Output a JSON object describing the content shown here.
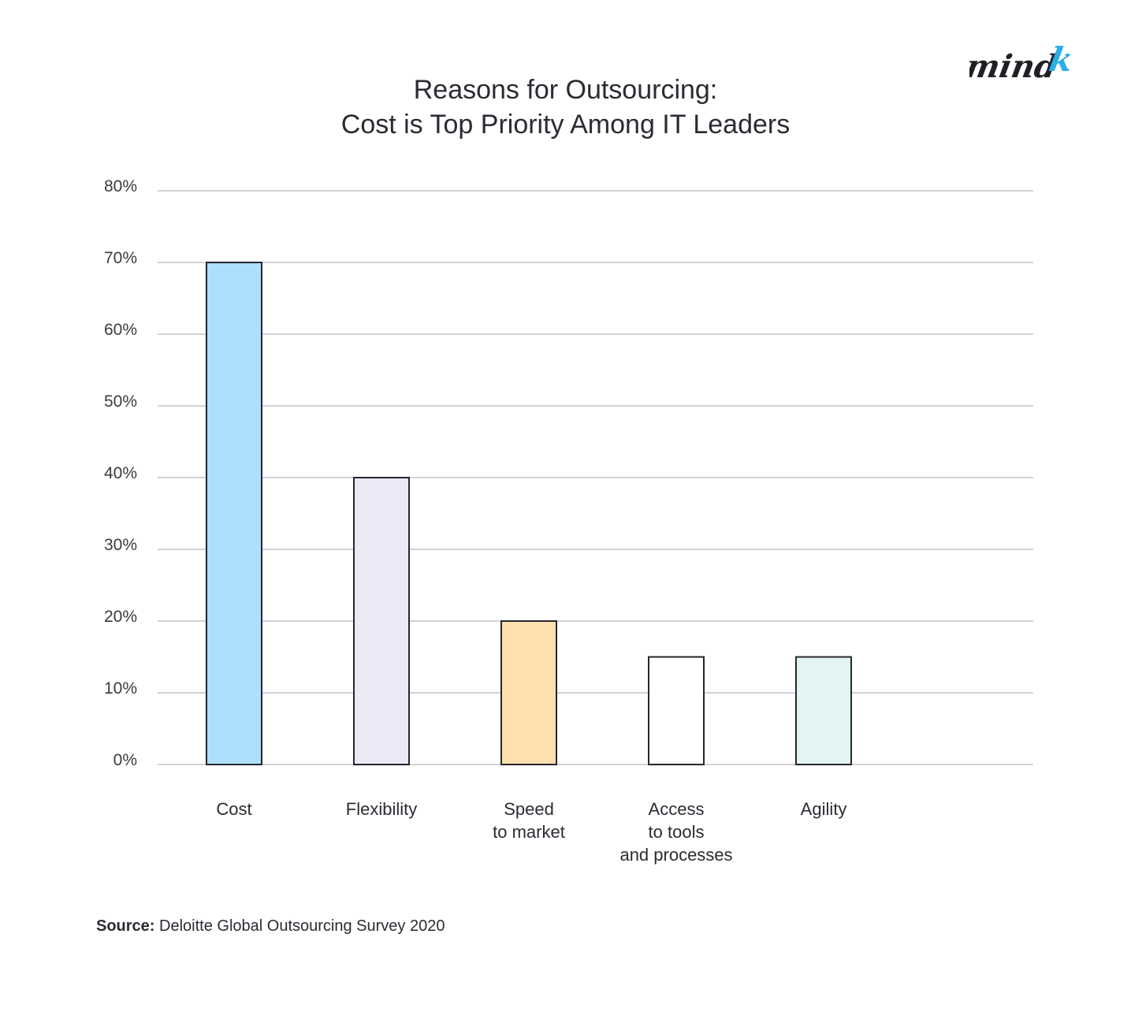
{
  "logo": {
    "text": "mind",
    "accent": "k",
    "accent_color": "#29aee8"
  },
  "title": {
    "line1": "Reasons for Outsourcing:",
    "line2": "Cost is Top Priority Among IT Leaders"
  },
  "source": {
    "label": "Source:",
    "text": "Deloitte Global Outsourcing Survey 2020"
  },
  "chart_data": {
    "type": "bar",
    "title": "Reasons for Outsourcing: Cost is Top Priority Among IT Leaders",
    "categories": [
      [
        "Cost"
      ],
      [
        "Flexibility"
      ],
      [
        "Speed",
        "to market"
      ],
      [
        "Access",
        "to tools",
        "and processes"
      ],
      [
        "Agility"
      ]
    ],
    "values": [
      70,
      40,
      20,
      15,
      15
    ],
    "colors": [
      "#aee0fd",
      "#ece9f7",
      "#fee0ae",
      "#ffffff",
      "#e3f5f2"
    ],
    "ylim": [
      0,
      80
    ],
    "yticks": [
      "0%",
      "10%",
      "20%",
      "30%",
      "40%",
      "50%",
      "60%",
      "70%",
      "80%"
    ],
    "ytick_values": [
      0,
      10,
      20,
      30,
      40,
      50,
      60,
      70,
      80
    ],
    "grid": true,
    "xlabel": "",
    "ylabel": ""
  }
}
